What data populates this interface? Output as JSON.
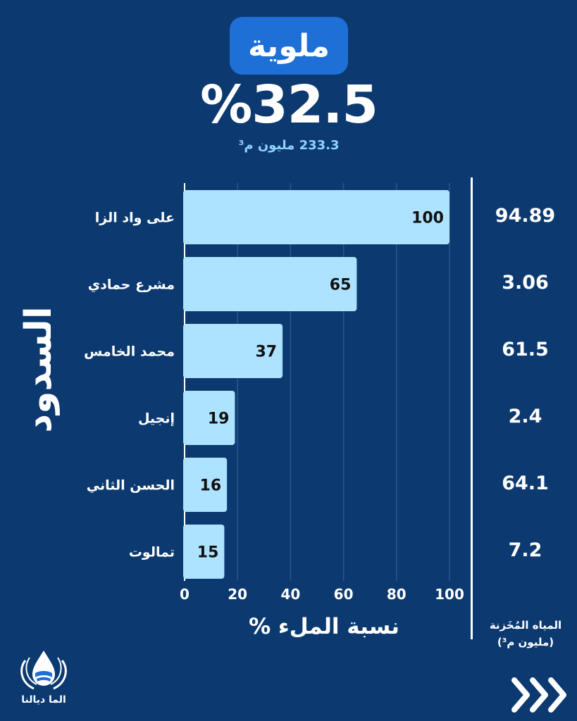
{
  "header": {
    "basin": "ملوية",
    "fill_percent": "%32.5",
    "volume": "233.3 مليون م³"
  },
  "side_label": "السدود",
  "stored_header_line1": "المياه المُخَزنة",
  "stored_header_line2": "(مليون م³)",
  "stored_values": [
    "94.89",
    "3.06",
    "61.5",
    "2.4",
    "64.1",
    "7.2"
  ],
  "x_axis_label": "نسبة الملء %",
  "logo_text": "الما ديالنا",
  "colors": {
    "background": "#0c3a70",
    "bar": "#aee3ff",
    "title_pill": "#1e6fd6",
    "accent_text": "#8fd3ff"
  },
  "icons": [
    "water-drop-hands-logo",
    "chevron-right-triple-icon"
  ],
  "chart_data": {
    "type": "bar",
    "orientation": "horizontal",
    "categories": [
      "على واد الزا",
      "مشرع حمادي",
      "محمد الخامس",
      "إنجيل",
      "الحسن الثاني",
      "تمالوت"
    ],
    "values": [
      100,
      65,
      37,
      19,
      16,
      15
    ],
    "xlabel": "نسبة الملء %",
    "ylabel": "السدود",
    "xlim": [
      0,
      100
    ],
    "xticks": [
      0,
      20,
      40,
      60,
      80,
      100
    ],
    "grid": true
  }
}
